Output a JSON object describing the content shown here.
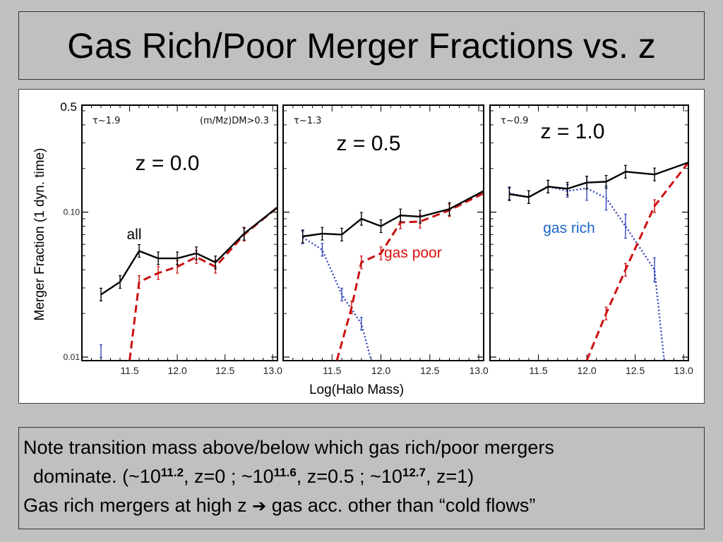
{
  "slide": {
    "title": "Gas Rich/Poor Merger Fractions vs. z",
    "note": {
      "line1": "Note transition mass above/below which gas rich/poor mergers",
      "line2": {
        "prefix": "dominate.  (~10",
        "exp1": "11.2",
        "mid1": ", z=0 ; ~10",
        "exp2": "11.6",
        "mid2": ", z=0.5 ; ~10",
        "exp3": "12.7",
        "suffix": ", z=1)"
      },
      "line3": {
        "prefix": "Gas rich mergers at high z ",
        "arrow": "➔",
        "suffix": " gas acc. other than “cold flows”"
      }
    }
  },
  "colors": {
    "all": "#000000",
    "gas_poor": "#cc1111",
    "gas_rich": "#3344bb",
    "gas_rich_label": "#1a66cc",
    "gas_poor_label": "#dd1111"
  },
  "chart_data": {
    "type": "line",
    "ylabel": "Merger Fraction (1 dyn. time)",
    "xlabel": "Log(Halo Mass)",
    "yscale": "log",
    "ylim": [
      0.01,
      0.5
    ],
    "xlim": [
      11.0,
      13.05
    ],
    "y_tick_labels": [
      "0.5",
      "0.10",
      "0.01"
    ],
    "x_tick_labels": [
      "11.5",
      "12.0",
      "12.5",
      "13.0"
    ],
    "panels": [
      {
        "tau_label": "τ~1.9",
        "mass_cut_label": "(m/Mz)DM>0.3",
        "z_label": "z = 0.0",
        "annotations": [
          "all"
        ],
        "series": [
          {
            "name": "all",
            "x": [
              11.2,
              11.4,
              11.6,
              11.8,
              12.0,
              12.2,
              12.4,
              12.7,
              13.05
            ],
            "y": [
              0.027,
              0.033,
              0.054,
              0.048,
              0.048,
              0.052,
              0.045,
              0.071,
              0.108
            ]
          },
          {
            "name": "gas poor",
            "x": [
              11.5,
              11.6,
              11.8,
              12.0,
              12.2,
              12.4,
              12.7,
              13.05
            ],
            "y": [
              0.0095,
              0.033,
              0.038,
              0.042,
              0.049,
              0.042,
              0.07,
              0.108
            ]
          },
          {
            "name": "gas rich",
            "x": [
              11.2
            ],
            "y": [
              0.011
            ]
          }
        ]
      },
      {
        "tau_label": "τ~1.3",
        "z_label": "z = 0.5",
        "annotations": [
          "gas poor"
        ],
        "series": [
          {
            "name": "all",
            "x": [
              11.2,
              11.4,
              11.6,
              11.8,
              12.0,
              12.2,
              12.4,
              12.7,
              13.05
            ],
            "y": [
              0.068,
              0.071,
              0.07,
              0.09,
              0.08,
              0.095,
              0.093,
              0.105,
              0.14
            ]
          },
          {
            "name": "gas poor",
            "x": [
              11.55,
              11.7,
              11.8,
              12.0,
              12.2,
              12.4,
              12.7,
              13.05
            ],
            "y": [
              0.0095,
              0.022,
              0.045,
              0.052,
              0.085,
              0.086,
              0.103,
              0.135
            ]
          },
          {
            "name": "gas rich",
            "x": [
              11.2,
              11.4,
              11.6,
              11.8,
              11.9
            ],
            "y": [
              0.067,
              0.055,
              0.027,
              0.017,
              0.0095
            ]
          }
        ]
      },
      {
        "tau_label": "τ~0.9",
        "z_label": "z = 1.0",
        "annotations": [
          "gas rich"
        ],
        "series": [
          {
            "name": "all",
            "x": [
              11.2,
              11.4,
              11.6,
              11.8,
              12.0,
              12.2,
              12.4,
              12.7,
              13.05
            ],
            "y": [
              0.133,
              0.127,
              0.15,
              0.145,
              0.16,
              0.162,
              0.19,
              0.182,
              0.22
            ]
          },
          {
            "name": "gas poor",
            "x": [
              12.0,
              12.2,
              12.4,
              12.7,
              13.05
            ],
            "y": [
              0.0095,
              0.02,
              0.04,
              0.11,
              0.22
            ]
          },
          {
            "name": "gas rich",
            "x": [
              11.2,
              11.4,
              11.6,
              11.8,
              12.0,
              12.2,
              12.4,
              12.7,
              12.8
            ],
            "y": [
              0.135,
              0.127,
              0.15,
              0.14,
              0.146,
              0.125,
              0.08,
              0.04,
              0.0095
            ]
          }
        ]
      }
    ]
  }
}
